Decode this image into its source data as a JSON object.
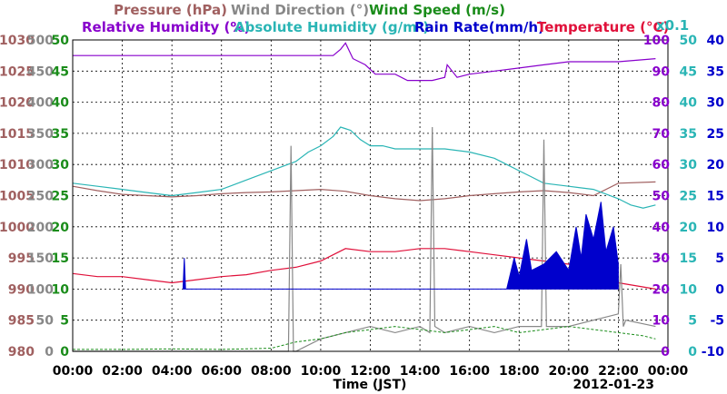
{
  "chart_data": {
    "type": "line",
    "xlabel": "Time (JST)",
    "date": "2012-01-23",
    "x_ticks": [
      "00:00",
      "02:00",
      "04:00",
      "06:00",
      "08:00",
      "10:00",
      "12:00",
      "14:00",
      "16:00",
      "18:00",
      "20:00",
      "22:00",
      "00:00"
    ],
    "xlim": [
      0,
      24
    ],
    "grid": true,
    "multiplier_label": "x0.1",
    "axes": [
      {
        "key": "pressure",
        "side": "left",
        "label": "Pressure (hPa)",
        "color": "#a06060",
        "range": [
          980,
          1030
        ],
        "ticks": [
          "980",
          "985",
          "990",
          "995",
          "1000",
          "1005",
          "1010",
          "1015",
          "1020",
          "1025",
          "1030"
        ]
      },
      {
        "key": "wind_dir",
        "side": "left",
        "label": "Wind Direction (°)",
        "color": "#888888",
        "range": [
          0,
          500
        ],
        "ticks": [
          "0",
          "50",
          "100",
          "150",
          "200",
          "250",
          "300",
          "350",
          "400",
          "450",
          "500"
        ]
      },
      {
        "key": "wind_speed",
        "side": "left",
        "label": "Wind Speed (m/s)",
        "color": "#1a8c1a",
        "range": [
          0,
          50
        ],
        "ticks": [
          "0",
          "5",
          "10",
          "15",
          "20",
          "25",
          "30",
          "35",
          "40",
          "45",
          "50"
        ]
      },
      {
        "key": "humidity",
        "side": "right",
        "label": "Relative Humidity (%)",
        "color": "#8800cc",
        "range": [
          0,
          100
        ],
        "ticks": [
          "0",
          "10",
          "20",
          "30",
          "40",
          "50",
          "60",
          "70",
          "80",
          "90",
          "100"
        ]
      },
      {
        "key": "abs_humidity",
        "side": "right",
        "label": "Absolute Humidity (g/m³)",
        "color": "#2ab5b5",
        "range": [
          0,
          50
        ],
        "ticks": [
          "0",
          "5",
          "10",
          "15",
          "20",
          "25",
          "30",
          "35",
          "40",
          "45",
          "50"
        ]
      },
      {
        "key": "rain",
        "side": "right",
        "label": "Rain Rate(mm/h)",
        "color": "#0000cc",
        "range": [
          -10,
          40
        ],
        "ticks": [
          "-10",
          "-5",
          "0",
          "5",
          "10",
          "15",
          "20",
          "25",
          "30",
          "35",
          "40"
        ]
      }
    ],
    "temperature_label": "Temperature (°C)",
    "temperature_color": "#e0103a",
    "series": [
      {
        "name": "Pressure",
        "axis": "pressure",
        "color": "#a06060",
        "x": [
          0,
          1,
          2,
          3,
          4,
          5,
          6,
          7,
          8,
          9,
          10,
          11,
          12,
          13,
          14,
          15,
          16,
          17,
          18,
          19,
          20,
          21,
          22,
          23.5
        ],
        "y": [
          1006.5,
          1005.8,
          1005.2,
          1005.0,
          1004.8,
          1005.0,
          1005.3,
          1005.5,
          1005.6,
          1005.8,
          1006.0,
          1005.7,
          1005.0,
          1004.5,
          1004.2,
          1004.5,
          1005.0,
          1005.3,
          1005.6,
          1005.8,
          1005.5,
          1005.0,
          1007.0,
          1007.2
        ]
      },
      {
        "name": "Relative Humidity",
        "axis": "humidity",
        "color": "#8800cc",
        "x": [
          0,
          2,
          4,
          6,
          8,
          9.5,
          10.5,
          10.8,
          11.0,
          11.3,
          11.8,
          12.2,
          13.0,
          13.5,
          14.0,
          14.5,
          15.0,
          15.1,
          15.5,
          16.0,
          17.0,
          18.0,
          19.0,
          20.0,
          21.0,
          22.0,
          23.5
        ],
        "y": [
          95,
          95,
          95,
          95,
          95,
          95,
          95,
          97,
          99,
          94,
          92,
          89,
          89,
          87,
          87,
          87,
          88,
          92,
          88,
          89,
          90,
          91,
          92,
          93,
          93,
          93,
          94
        ]
      },
      {
        "name": "Absolute Humidity",
        "axis": "abs_humidity",
        "color": "#2ab5b5",
        "x": [
          0,
          1,
          2,
          3,
          4,
          5,
          6,
          7,
          8,
          9,
          9.5,
          10,
          10.5,
          10.8,
          11.2,
          11.6,
          12,
          12.5,
          13,
          14,
          14.5,
          15,
          16,
          17,
          17.5,
          18,
          18.5,
          19,
          20,
          21,
          22,
          22.5,
          23,
          23.5
        ],
        "y": [
          27,
          26.5,
          26,
          25.5,
          25,
          25.5,
          26,
          27.5,
          29,
          30.5,
          32,
          33,
          34.5,
          36,
          35.5,
          34,
          33,
          33,
          32.5,
          32.5,
          32.5,
          32.5,
          32,
          31,
          30,
          29,
          28,
          27,
          26.5,
          26,
          24.5,
          23.5,
          23,
          23.5
        ]
      },
      {
        "name": "Temperature",
        "axis": "abs_humidity",
        "color": "#e0103a",
        "x": [
          0,
          1,
          2,
          3,
          4,
          5,
          6,
          7,
          8,
          9,
          10,
          11,
          12,
          13,
          14,
          15,
          16,
          17,
          18,
          19,
          20,
          21,
          22,
          23.5
        ],
        "y": [
          12.5,
          12,
          12,
          11.5,
          11,
          11.5,
          12,
          12.3,
          13,
          13.5,
          14.5,
          16.5,
          16,
          16,
          16.5,
          16.5,
          16,
          15.5,
          15,
          14.5,
          14,
          13,
          11,
          10
        ]
      },
      {
        "name": "Wind Direction",
        "axis": "wind_dir",
        "color": "#888888",
        "x": [
          0,
          8.7,
          8.8,
          8.9,
          9.0,
          10,
          11,
          12,
          13,
          14,
          14.4,
          14.5,
          14.6,
          15,
          16,
          17,
          18,
          18.9,
          19.0,
          19.1,
          20,
          21,
          22,
          22.1,
          22.2,
          22.3,
          23.5
        ],
        "y": [
          0,
          0,
          330,
          0,
          0,
          20,
          30,
          40,
          30,
          40,
          30,
          360,
          40,
          30,
          40,
          30,
          40,
          40,
          340,
          40,
          40,
          50,
          60,
          140,
          40,
          50,
          40
        ]
      },
      {
        "name": "Wind Speed",
        "axis": "wind_speed",
        "color": "#1a8c1a",
        "x": [
          0,
          2,
          4,
          6,
          8,
          9,
          10,
          11,
          12,
          13,
          14,
          15,
          16,
          17,
          18,
          19,
          20,
          21,
          22,
          23,
          23.5
        ],
        "y": [
          0.3,
          0.3,
          0.4,
          0.3,
          0.5,
          1.5,
          2,
          3,
          3.5,
          4,
          3.5,
          3,
          3.5,
          4,
          3,
          3.5,
          4,
          3.5,
          3,
          2.5,
          2
        ]
      },
      {
        "name": "Rain Rate",
        "axis": "rain",
        "color": "#0000cc",
        "x": [
          4.45,
          4.5,
          4.55,
          17.5,
          17.8,
          18.0,
          18.3,
          18.5,
          19.0,
          19.5,
          20.0,
          20.3,
          20.5,
          20.7,
          21.0,
          21.3,
          21.5,
          21.8,
          22.0
        ],
        "y": [
          0,
          5,
          0,
          0,
          5,
          2,
          8,
          3,
          4,
          6,
          3,
          10,
          5,
          12,
          8,
          14,
          6,
          10,
          4
        ]
      }
    ]
  }
}
